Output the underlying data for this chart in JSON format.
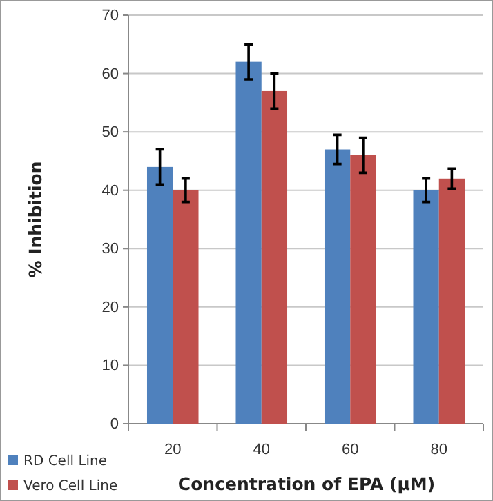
{
  "chart_data": {
    "type": "bar",
    "categories": [
      "20",
      "40",
      "60",
      "80"
    ],
    "xlabel": "Concentration of EPA (µM)",
    "ylabel": "% Inhibition",
    "series": [
      {
        "name": "RD Cell Line",
        "color": "#4f81bd",
        "values": [
          44,
          62,
          47,
          40
        ],
        "errors": [
          3,
          3,
          2.5,
          2
        ]
      },
      {
        "name": "Vero Cell Line",
        "color": "#c0504d",
        "values": [
          40,
          57,
          46,
          42
        ],
        "errors": [
          2,
          3,
          3,
          1.7
        ]
      }
    ],
    "ylim": [
      0,
      70
    ],
    "yticks": [
      0,
      10,
      20,
      30,
      40,
      50,
      60,
      70
    ],
    "grid": "y",
    "legend": "bottom left"
  }
}
